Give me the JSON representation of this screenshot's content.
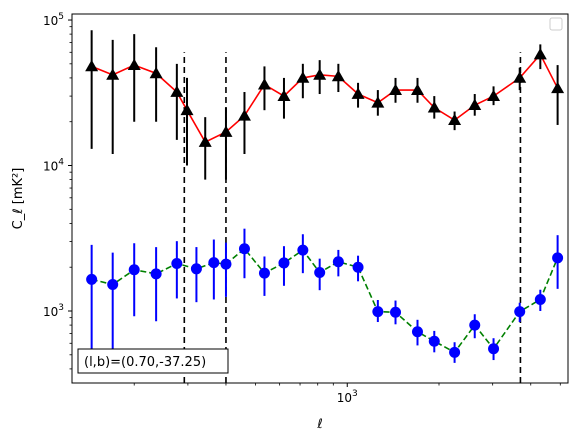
{
  "chart_data": {
    "type": "scatter",
    "title": "",
    "xlabel": "ℓ",
    "ylabel": "C_ℓ  [mK²]",
    "xscale": "log",
    "yscale": "log",
    "xlim": [
      125,
      5300
    ],
    "ylim": [
      320,
      110000
    ],
    "x_tick_labels": [
      {
        "value": 1000,
        "base": "10",
        "exp": "3"
      }
    ],
    "y_tick_labels": [
      {
        "value": 1000,
        "base": "10",
        "exp": "3"
      },
      {
        "value": 10000,
        "base": "10",
        "exp": "4"
      },
      {
        "value": 100000,
        "base": "10",
        "exp": "5"
      }
    ],
    "grid": false,
    "legend": "top-right (empty)",
    "annotation": "(l,b)=(0.70,-37.25)",
    "vlines": [
      292,
      400,
      3700
    ],
    "vline_range": [
      320,
      60000
    ],
    "series": [
      {
        "color": "#ff0000",
        "marker": "triangle-up",
        "marker_color": "#000000",
        "errorbar_color": "#000000",
        "linestyle": "solid",
        "x": [
          145,
          170,
          200,
          236,
          276,
          298,
          342,
          400,
          460,
          535,
          620,
          715,
          812,
          935,
          1085,
          1260,
          1440,
          1700,
          1930,
          2250,
          2620,
          3020,
          3680,
          4300,
          4900
        ],
        "y": [
          48000,
          42000,
          49000,
          43000,
          32000,
          24000,
          14500,
          17000,
          22000,
          36000,
          30000,
          40000,
          42000,
          41000,
          31000,
          27000,
          33000,
          33000,
          25000,
          20500,
          26000,
          30000,
          40000,
          58000,
          34000
        ],
        "err_low": [
          35000,
          30000,
          29000,
          23000,
          17000,
          14000,
          6500,
          9000,
          10000,
          12000,
          9000,
          11000,
          11000,
          9000,
          6000,
          5000,
          6000,
          6000,
          4000,
          3000,
          4000,
          4000,
          7000,
          12000,
          15000
        ],
        "err_high": [
          37000,
          31000,
          31000,
          22000,
          18000,
          16000,
          7000,
          8000,
          10000,
          12000,
          10000,
          10000,
          11000,
          9000,
          6000,
          6000,
          7000,
          7000,
          5000,
          3000,
          5000,
          5000,
          7000,
          10000,
          15000
        ]
      },
      {
        "color": "#008000",
        "marker": "circle",
        "marker_color": "#0000ff",
        "errorbar_color": "#0000ff",
        "linestyle": "dashed",
        "x": [
          145,
          170,
          200,
          236,
          276,
          320,
          365,
          400,
          460,
          535,
          620,
          715,
          812,
          935,
          1085,
          1260,
          1440,
          1700,
          1930,
          2250,
          2620,
          3020,
          3680,
          4300,
          4900
        ],
        "y": [
          1650,
          1520,
          1920,
          1800,
          2120,
          1950,
          2150,
          2100,
          2680,
          1820,
          2140,
          2620,
          1840,
          2180,
          2000,
          990,
          980,
          720,
          620,
          520,
          800,
          550,
          990,
          1200,
          2320
        ],
        "err_low": [
          1100,
          1000,
          1000,
          950,
          900,
          800,
          950,
          850,
          1000,
          550,
          650,
          800,
          450,
          450,
          400,
          150,
          170,
          140,
          100,
          80,
          150,
          90,
          150,
          200,
          900
        ],
        "err_high": [
          1200,
          1000,
          1000,
          950,
          900,
          800,
          950,
          850,
          1000,
          550,
          650,
          750,
          450,
          450,
          400,
          200,
          200,
          150,
          110,
          90,
          150,
          100,
          150,
          200,
          1000
        ]
      }
    ]
  }
}
